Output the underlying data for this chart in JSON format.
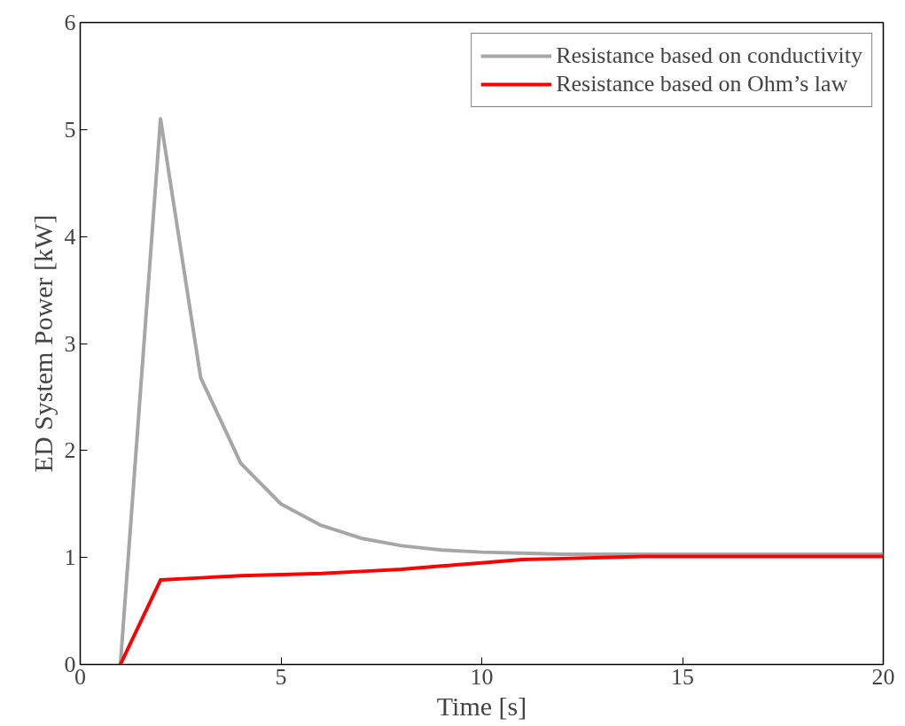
{
  "chart_data": {
    "type": "line",
    "xlabel": "Time [s]",
    "ylabel": "ED System Power [kW]",
    "x": [
      1,
      2,
      3,
      4,
      5,
      6,
      7,
      8,
      9,
      10,
      11,
      12,
      13,
      14,
      15,
      16,
      17,
      18,
      19,
      20
    ],
    "series": [
      {
        "name": "Resistance based on conductivity",
        "color": "#a6a6a6",
        "values": [
          0,
          5.1,
          2.68,
          1.88,
          1.5,
          1.3,
          1.18,
          1.11,
          1.07,
          1.05,
          1.04,
          1.03,
          1.03,
          1.03,
          1.03,
          1.03,
          1.03,
          1.03,
          1.03,
          1.03
        ]
      },
      {
        "name": "Resistance based on Ohm’s law",
        "color": "#ff0000",
        "values": [
          0,
          0.79,
          0.81,
          0.83,
          0.84,
          0.85,
          0.87,
          0.89,
          0.92,
          0.95,
          0.98,
          0.99,
          1.0,
          1.01,
          1.01,
          1.01,
          1.01,
          1.01,
          1.01,
          1.01
        ]
      }
    ],
    "xlim": [
      0,
      20
    ],
    "ylim": [
      0,
      6
    ],
    "xticks": [
      0,
      5,
      10,
      15,
      20
    ],
    "yticks": [
      0,
      1,
      2,
      3,
      4,
      5,
      6
    ],
    "grid": false,
    "legend": "top right",
    "line_style": "solid",
    "marker": "none"
  }
}
